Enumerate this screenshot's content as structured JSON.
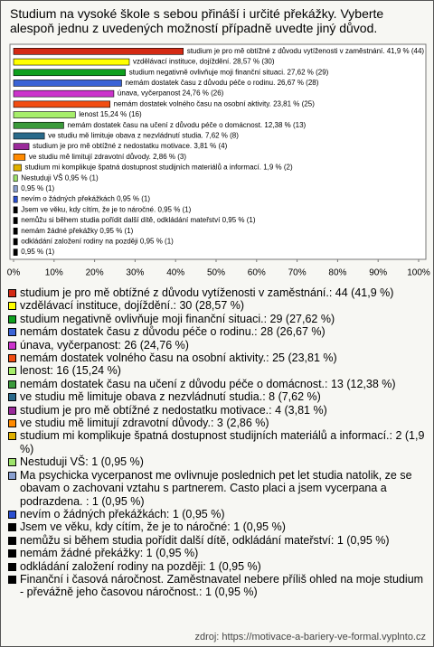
{
  "chart_data": {
    "type": "bar",
    "title": "Studium na vysoké škole s sebou přináší i určité překážky. Vyberte alespoň jednu z uvedených možností případně uvedte jiný důvod.",
    "categories": [
      "studium je pro mě obtížné z důvodu vytíženosti v zaměstnání.",
      "vzdělávací instituce, dojíždění.",
      "studium negativně ovlivňuje moji finanční situaci.",
      "nemám dostatek času z důvodu péče o rodinu.",
      "únava, vyčerpanost",
      "nemám dostatek volného času na osobní aktivity.",
      "lenost",
      "nemám dostatek času na učení z důvodu péče o domácnost.",
      "ve studiu mě limituje obava z nezvládnutí studia.",
      "studium je pro mě obtížné z nedostatku motivace.",
      "ve studiu mě limitují zdravotní důvody.",
      "studium mi komplikuje špatná dostupnost studijních materiálů a informací.",
      "Nestuduji VŠ",
      null,
      "nevím o žádných překážkách",
      "Jsem ve věku, kdy cítím, že je to náročné.",
      "nemůžu si během studia pořídit další dítě, odkládání mateřství",
      "nemám žádné překážky",
      "odkládání založení rodiny na později",
      null
    ],
    "values": [
      41.9,
      28.57,
      27.62,
      26.67,
      24.76,
      23.81,
      15.24,
      12.38,
      7.62,
      3.81,
      2.86,
      1.9,
      0.95,
      0.95,
      0.95,
      0.95,
      0.95,
      0.95,
      0.95,
      0.95
    ],
    "value_labels": [
      "41,9 % (44)",
      "28,57 % (30)",
      "27,62 % (29)",
      "26,67 % (28)",
      "24,76 % (26)",
      "23,81 % (25)",
      "15,24 % (16)",
      "12,38 % (13)",
      "7,62 % (8)",
      "3,81 % (4)",
      "2,86 % (3)",
      "1,9 % (2)",
      "0,95 % (1)",
      "0,95 % (1)",
      "0,95 % (1)",
      "0,95 % (1)",
      "0,95 % (1)",
      "0,95 % (1)",
      "0,95 % (1)",
      "0,95 % (1)"
    ],
    "colors": [
      "#d42a14",
      "#ffff00",
      "#0ea01e",
      "#3a63d6",
      "#cc33cc",
      "#f24d12",
      "#a6ee6a",
      "#3a9a3a",
      "#2a6a8a",
      "#9a2a9a",
      "#ff8a00",
      "#e0b000",
      "#9de36a",
      "#8aa0d0",
      "#2a4fd0",
      "#000000",
      "#000000",
      "#000000",
      "#000000",
      "#000000"
    ],
    "xlim": [
      0,
      100
    ],
    "xticks": [
      {
        "value": 0,
        "label": "0%"
      },
      {
        "value": 10,
        "label": "10%"
      },
      {
        "value": 20,
        "label": "20%"
      },
      {
        "value": 30,
        "label": "30%"
      },
      {
        "value": 40,
        "label": "40%"
      },
      {
        "value": 50,
        "label": "50%"
      },
      {
        "value": 60,
        "label": "60%"
      },
      {
        "value": 70,
        "label": "70%"
      },
      {
        "value": 80,
        "label": "80%"
      },
      {
        "value": 90,
        "label": "90%"
      },
      {
        "value": 100,
        "label": "100%"
      }
    ],
    "legend": [
      "studium je pro mě obtížné z důvodu vytíženosti v zaměstnání.: 44 (41,9 %)",
      "vzdělávací instituce, dojíždění.: 30 (28,57 %)",
      "studium negativně ovlivňuje moji finanční situaci.: 29 (27,62 %)",
      "nemám dostatek času z důvodu péče o rodinu.: 28 (26,67 %)",
      "únava, vyčerpanost: 26 (24,76 %)",
      "nemám dostatek volného času na osobní aktivity.: 25 (23,81 %)",
      "lenost: 16 (15,24 %)",
      "nemám dostatek času na učení z důvodu péče o domácnost.: 13 (12,38 %)",
      "ve studiu mě limituje obava z nezvládnutí studia.: 8 (7,62 %)",
      "studium je pro mě obtížné z nedostatku motivace.: 4 (3,81 %)",
      "ve studiu mě limitují zdravotní důvody.: 3 (2,86 %)",
      "studium mi komplikuje špatná dostupnost studijních materiálů a informací.: 2 (1,9 %)",
      "Nestuduji VŠ: 1 (0,95 %)",
      "Ma psychicka vycerpanost me ovlivnuje poslednich pet let studia natolik, ze se obavam o zachovani vztahu s partnerem. Casto placi a jsem vycerpana a podrazdena. : 1 (0,95 %)",
      "nevím o žádných překážkách: 1 (0,95 %)",
      "Jsem ve věku, kdy cítím, že je to náročné: 1 (0,95 %)",
      "nemůžu si během studia pořídit další dítě, odkládání mateřství: 1 (0,95 %)",
      "nemám žádné překážky: 1 (0,95 %)",
      "odkládání založení rodiny na později: 1 (0,95 %)",
      "Finanční i časová náročnost. Zaměstnavatel nebere příliš ohled na moje studium - převážně jeho časovou náročnost.: 1 (0,95 %)"
    ],
    "source": "zdroj: https://motivace-a-bariery-ve-formal.vyplnto.cz"
  }
}
